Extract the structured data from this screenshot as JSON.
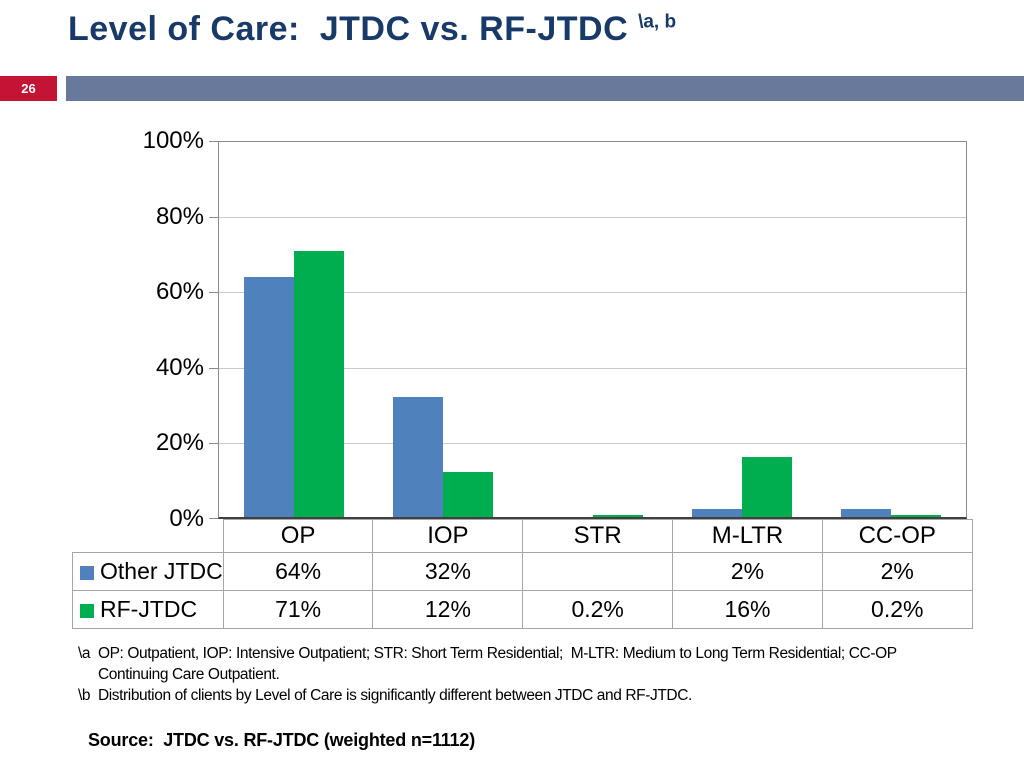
{
  "header": {
    "title": "Level of Care:  JTDC vs. RF-JTDC ",
    "superscript": "\\a, b",
    "page_number": "26"
  },
  "colors": {
    "title_navy": "#183A68",
    "badge_red": "#C41434",
    "band_gray": "#68799B",
    "series_blue": "#4F81BD",
    "series_green": "#00AE4F"
  },
  "chart_data": {
    "type": "bar",
    "categories": [
      "OP",
      "IOP",
      "STR",
      "M-LTR",
      "CC-OP"
    ],
    "series": [
      {
        "name": "Other JTDC",
        "color": "#4F81BD",
        "values": [
          64,
          32,
          null,
          2,
          2
        ],
        "cell_labels": [
          "64%",
          "32%",
          "",
          "2%",
          "2%"
        ]
      },
      {
        "name": "RF-JTDC",
        "color": "#00AE4F",
        "values": [
          71,
          12,
          0.2,
          16,
          0.2
        ],
        "cell_labels": [
          "71%",
          "12%",
          "0.2%",
          "16%",
          "0.2%"
        ]
      }
    ],
    "y_ticks": [
      "100%",
      "80%",
      "60%",
      "40%",
      "20%",
      "0%"
    ],
    "ylim": [
      0,
      100
    ],
    "grid": true,
    "legend_position": "data-table-left"
  },
  "footnotes": {
    "a_line1": "\\a  OP: Outpatient, IOP: Intensive Outpatient; STR: Short Term Residential;  M-LTR: Medium to Long Term Residential; CC-OP",
    "a_line2": "Continuing Care Outpatient.",
    "b_line": "\\b  Distribution of clients by Level of Care is significantly different between JTDC and RF-JTDC."
  },
  "source": "Source:  JTDC vs. RF-JTDC (weighted n=1112)"
}
